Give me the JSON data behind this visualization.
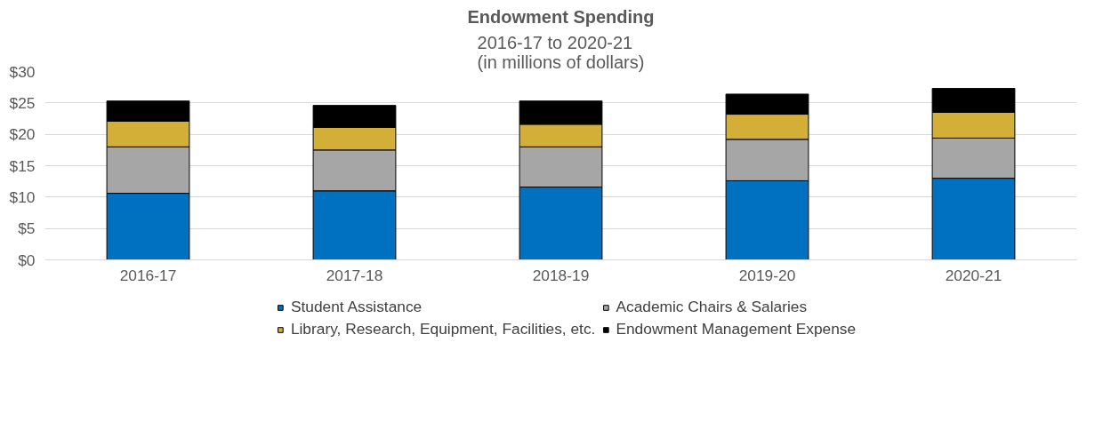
{
  "chart_data": {
    "type": "bar",
    "stacked": true,
    "title": "Endowment Spending",
    "subtitle": "2016-17 to 2020-21\n(in millions of dollars)",
    "categories": [
      "2016-17",
      "2017-18",
      "2018-19",
      "2019-20",
      "2020-21"
    ],
    "series": [
      {
        "name": "Student Assistance",
        "color": "#0070c0",
        "values": [
          10.6,
          11.0,
          11.6,
          12.6,
          13.0
        ]
      },
      {
        "name": "Academic Chairs & Salaries",
        "color": "#a6a6a6",
        "values": [
          7.4,
          6.5,
          6.4,
          6.6,
          6.4
        ]
      },
      {
        "name": "Library, Research, Equipment, Facilities, etc.",
        "color": "#d4af37",
        "values": [
          4.1,
          3.6,
          3.6,
          4.0,
          4.1
        ]
      },
      {
        "name": "Endowment Management Expense",
        "color": "#000000",
        "values": [
          3.2,
          3.5,
          3.7,
          3.2,
          3.8
        ]
      }
    ],
    "ylim": [
      0,
      30
    ],
    "yticks": [
      {
        "value": 0,
        "label": "$0"
      },
      {
        "value": 5,
        "label": "$5"
      },
      {
        "value": 10,
        "label": "$10"
      },
      {
        "value": 15,
        "label": "$15"
      },
      {
        "value": 20,
        "label": "$20"
      },
      {
        "value": 25,
        "label": "$25"
      },
      {
        "value": 30,
        "label": "$30"
      }
    ],
    "grid": "y",
    "legend": "bottom"
  }
}
